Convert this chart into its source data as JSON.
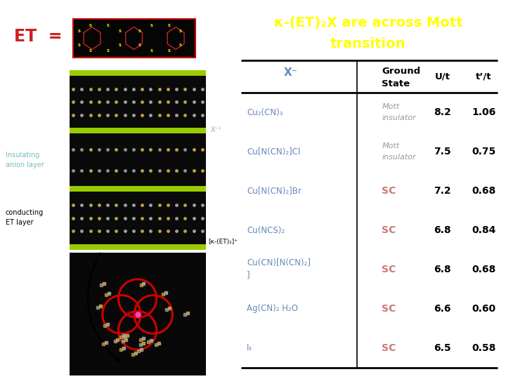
{
  "title_line1": "κ-(ET)₂X are across Mott",
  "title_line2": "transition",
  "title_color": "#ffff00",
  "bg_color": "#ffffff",
  "table_bg": "#e8e8e8",
  "header_x_color": "#6688bb",
  "header_other_color": "#000000",
  "col1_color": "#6688bb",
  "mott_color": "#999999",
  "sc_color": "#cc7777",
  "num_color": "#000000",
  "rows": [
    {
      "x": "Cu₂(CN)₃",
      "state": "Mott\ninsulator",
      "ut": "8.2",
      "tpt": "1.06",
      "is_mott": true
    },
    {
      "x": "Cu[N(CN)₂]Cl",
      "state": "Mott\ninsulator",
      "ut": "7.5",
      "tpt": "0.75",
      "is_mott": true
    },
    {
      "x": "Cu[N(CN)₂]Br",
      "state": "SC",
      "ut": "7.2",
      "tpt": "0.68",
      "is_mott": false
    },
    {
      "x": "Cu(NCS)₂",
      "state": "SC",
      "ut": "6.8",
      "tpt": "0.84",
      "is_mott": false
    },
    {
      "x": "Cu(CN)[N(CN)₂]\n]",
      "state": "SC",
      "ut": "6.8",
      "tpt": "0.68",
      "is_mott": false
    },
    {
      "x": "Ag(CN)₂ H₂O",
      "state": "SC",
      "ut": "6.6",
      "tpt": "0.60",
      "is_mott": false
    },
    {
      "x": "I₃",
      "state": "SC",
      "ut": "6.5",
      "tpt": "0.58",
      "is_mott": false
    }
  ],
  "et_color": "#cc2222",
  "insulating_color": "#77bbbb",
  "green_layer": "#99cc00",
  "black_layer": "#0a0a0a"
}
